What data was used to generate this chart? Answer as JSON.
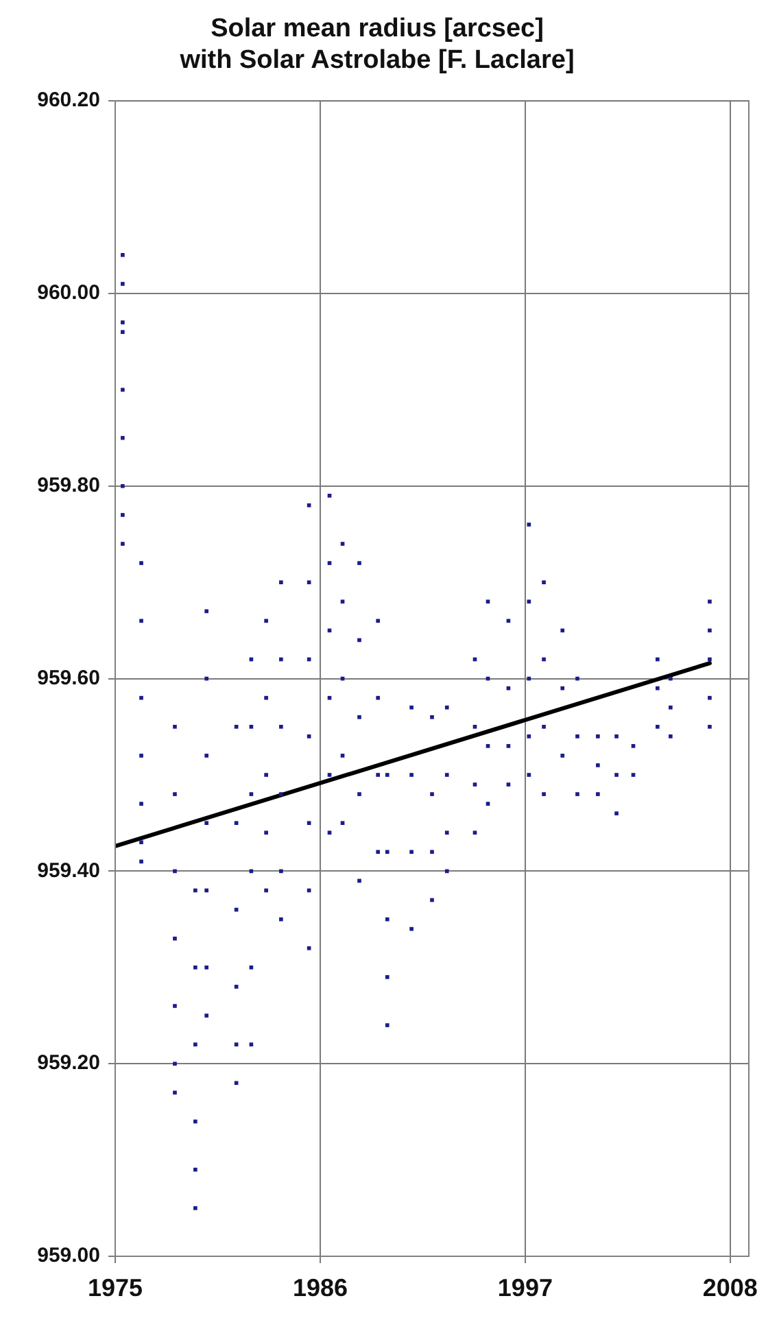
{
  "chart_data": {
    "type": "scatter",
    "title": "Solar mean radius [arcsec]\nwith Solar Astrolabe [F. Laclare]",
    "xlim": [
      1975,
      2009
    ],
    "xticks": [
      1975,
      1986,
      1997,
      2008
    ],
    "ylim": [
      959.0,
      960.2
    ],
    "yticks": [
      {
        "value": 959.0,
        "label": "959.00"
      },
      {
        "value": 959.2,
        "label": "959.20"
      },
      {
        "value": 959.4,
        "label": "959.40"
      },
      {
        "value": 959.6,
        "label": "959.60"
      },
      {
        "value": 959.8,
        "label": "959.80"
      },
      {
        "value": 960.0,
        "label": "960.00"
      },
      {
        "value": 960.2,
        "label": "960.20"
      }
    ],
    "grid": true,
    "legend": false,
    "marker": "square",
    "series": [
      {
        "color": "#1c1c8c",
        "x": [
          1975.4,
          1975.4,
          1975.4,
          1975.4,
          1975.4,
          1975.4,
          1975.4,
          1975.4,
          1975.4,
          1976.4,
          1976.4,
          1976.4,
          1976.4,
          1976.4,
          1976.4,
          1976.4,
          1978.2,
          1978.2,
          1978.2,
          1978.2,
          1978.2,
          1978.2,
          1978.2,
          1979.3,
          1979.3,
          1979.3,
          1979.3,
          1979.3,
          1979.3,
          1979.9,
          1979.9,
          1979.9,
          1979.9,
          1979.9,
          1979.9,
          1979.9,
          1981.5,
          1981.5,
          1981.5,
          1981.5,
          1981.5,
          1981.5,
          1982.3,
          1982.3,
          1982.3,
          1982.3,
          1982.3,
          1982.3,
          1983.1,
          1983.1,
          1983.1,
          1983.1,
          1983.1,
          1983.9,
          1983.9,
          1983.9,
          1983.9,
          1983.9,
          1983.9,
          1985.4,
          1985.4,
          1985.4,
          1985.4,
          1985.4,
          1985.4,
          1985.4,
          1986.5,
          1986.5,
          1986.5,
          1986.5,
          1986.5,
          1986.5,
          1987.2,
          1987.2,
          1987.2,
          1987.2,
          1987.2,
          1988.1,
          1988.1,
          1988.1,
          1988.1,
          1988.1,
          1989.1,
          1989.1,
          1989.1,
          1989.1,
          1989.6,
          1989.6,
          1989.6,
          1989.6,
          1989.6,
          1990.9,
          1990.9,
          1990.9,
          1990.9,
          1992.0,
          1992.0,
          1992.0,
          1992.0,
          1992.8,
          1992.8,
          1992.8,
          1992.8,
          1994.3,
          1994.3,
          1994.3,
          1994.3,
          1995.0,
          1995.0,
          1995.0,
          1995.0,
          1996.1,
          1996.1,
          1996.1,
          1996.1,
          1997.2,
          1997.2,
          1997.2,
          1997.2,
          1997.2,
          1998.0,
          1998.0,
          1998.0,
          1998.0,
          1999.0,
          1999.0,
          1999.0,
          1999.8,
          1999.8,
          1999.8,
          2000.9,
          2000.9,
          2000.9,
          2001.9,
          2001.9,
          2001.9,
          2002.8,
          2002.8,
          2004.1,
          2004.1,
          2004.1,
          2004.8,
          2004.8,
          2004.8,
          2006.9,
          2006.9,
          2006.9,
          2006.9,
          2006.9
        ],
        "values": [
          960.04,
          960.01,
          959.97,
          959.96,
          959.9,
          959.85,
          959.8,
          959.77,
          959.74,
          959.72,
          959.66,
          959.58,
          959.52,
          959.47,
          959.43,
          959.41,
          959.55,
          959.48,
          959.4,
          959.33,
          959.26,
          959.2,
          959.17,
          959.38,
          959.3,
          959.22,
          959.14,
          959.09,
          959.05,
          959.67,
          959.6,
          959.52,
          959.45,
          959.38,
          959.3,
          959.25,
          959.55,
          959.45,
          959.36,
          959.28,
          959.22,
          959.18,
          959.62,
          959.55,
          959.48,
          959.4,
          959.3,
          959.22,
          959.66,
          959.58,
          959.5,
          959.44,
          959.38,
          959.7,
          959.62,
          959.55,
          959.48,
          959.4,
          959.35,
          959.78,
          959.7,
          959.62,
          959.54,
          959.45,
          959.38,
          959.32,
          959.79,
          959.72,
          959.65,
          959.58,
          959.5,
          959.44,
          959.74,
          959.68,
          959.6,
          959.52,
          959.45,
          959.72,
          959.64,
          959.56,
          959.48,
          959.39,
          959.66,
          959.58,
          959.5,
          959.42,
          959.5,
          959.42,
          959.35,
          959.29,
          959.24,
          959.57,
          959.5,
          959.42,
          959.34,
          959.56,
          959.48,
          959.42,
          959.37,
          959.57,
          959.5,
          959.44,
          959.4,
          959.62,
          959.55,
          959.49,
          959.44,
          959.68,
          959.6,
          959.53,
          959.47,
          959.66,
          959.59,
          959.53,
          959.49,
          959.76,
          959.68,
          959.6,
          959.54,
          959.5,
          959.7,
          959.62,
          959.55,
          959.48,
          959.65,
          959.59,
          959.52,
          959.6,
          959.54,
          959.48,
          959.54,
          959.51,
          959.48,
          959.54,
          959.5,
          959.46,
          959.53,
          959.5,
          959.62,
          959.59,
          959.55,
          959.6,
          959.57,
          959.54,
          959.68,
          959.65,
          959.62,
          959.58,
          959.55
        ]
      },
      {
        "type": "line",
        "color": "#000000",
        "marker": "none",
        "line_style": "solid",
        "x": [
          1975,
          2006.9
        ],
        "values": [
          959.426,
          959.616
        ]
      }
    ]
  }
}
